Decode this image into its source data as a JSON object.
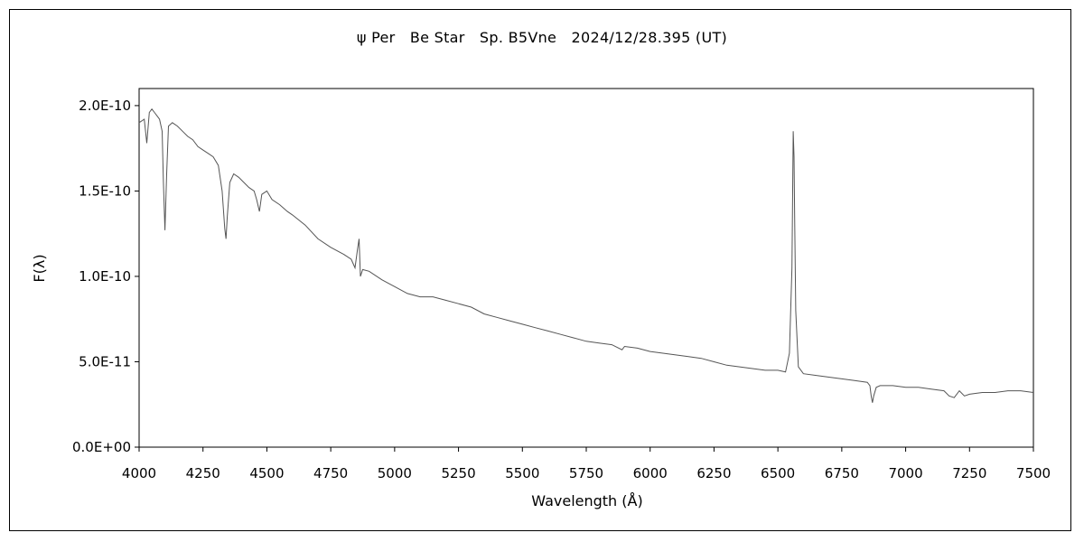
{
  "chart_data": {
    "type": "line",
    "title": "ψ Per　Be Star　Sp. B5Vne　2024/12/28.395 (UT)",
    "xlabel": "Wavelength (Å)",
    "ylabel": "F(λ)",
    "xlim": [
      4000,
      7500
    ],
    "ylim": [
      0,
      2.1e-10
    ],
    "x_ticks": [
      4000,
      4250,
      4500,
      4750,
      5000,
      5250,
      5500,
      5750,
      6000,
      6250,
      6500,
      6750,
      7000,
      7250,
      7500
    ],
    "x_tick_labels": [
      "4000",
      "4250",
      "4500",
      "4750",
      "5000",
      "5250",
      "5500",
      "5750",
      "6000",
      "6250",
      "6500",
      "6750",
      "7000",
      "7250",
      "7500"
    ],
    "y_ticks": [
      0,
      5e-11,
      1e-10,
      1.5e-10,
      2e-10
    ],
    "y_tick_labels": [
      "0.0E+00",
      "5.0E-11",
      "1.0E-10",
      "1.5E-10",
      "2.0E-10"
    ],
    "grid": false,
    "legend": false,
    "line_color": "#555555",
    "series": [
      {
        "x": [
          4000,
          4020,
          4030,
          4040,
          4050,
          4060,
          4070,
          4080,
          4090,
          4095,
          4101,
          4108,
          4115,
          4130,
          4150,
          4170,
          4190,
          4210,
          4230,
          4250,
          4270,
          4290,
          4310,
          4325,
          4335,
          4340,
          4345,
          4355,
          4370,
          4390,
          4410,
          4430,
          4450,
          4460,
          4471,
          4480,
          4500,
          4520,
          4550,
          4580,
          4600,
          4650,
          4700,
          4750,
          4800,
          4830,
          4845,
          4855,
          4861,
          4866,
          4875,
          4900,
          4950,
          5000,
          5050,
          5100,
          5150,
          5200,
          5250,
          5300,
          5350,
          5400,
          5450,
          5500,
          5550,
          5600,
          5650,
          5700,
          5750,
          5800,
          5850,
          5890,
          5900,
          5950,
          6000,
          6050,
          6100,
          6150,
          6200,
          6250,
          6300,
          6350,
          6400,
          6450,
          6500,
          6530,
          6545,
          6555,
          6560,
          6563,
          6566,
          6570,
          6580,
          6600,
          6650,
          6700,
          6750,
          6800,
          6850,
          6860,
          6865,
          6870,
          6875,
          6885,
          6900,
          6950,
          7000,
          7050,
          7100,
          7150,
          7170,
          7190,
          7210,
          7230,
          7250,
          7300,
          7350,
          7400,
          7450,
          7500
        ],
        "y": [
          1.9e-10,
          1.92e-10,
          1.78e-10,
          1.96e-10,
          1.98e-10,
          1.96e-10,
          1.94e-10,
          1.92e-10,
          1.85e-10,
          1.55e-10,
          1.27e-10,
          1.6e-10,
          1.88e-10,
          1.9e-10,
          1.88e-10,
          1.85e-10,
          1.82e-10,
          1.8e-10,
          1.76e-10,
          1.74e-10,
          1.72e-10,
          1.7e-10,
          1.65e-10,
          1.5e-10,
          1.28e-10,
          1.22e-10,
          1.35e-10,
          1.55e-10,
          1.6e-10,
          1.58e-10,
          1.55e-10,
          1.52e-10,
          1.5e-10,
          1.45e-10,
          1.38e-10,
          1.48e-10,
          1.5e-10,
          1.45e-10,
          1.42e-10,
          1.38e-10,
          1.36e-10,
          1.3e-10,
          1.22e-10,
          1.17e-10,
          1.13e-10,
          1.1e-10,
          1.05e-10,
          1.16e-10,
          1.22e-10,
          1e-10,
          1.04e-10,
          1.03e-10,
          9.8e-11,
          9.4e-11,
          9e-11,
          8.8e-11,
          8.8e-11,
          8.6e-11,
          8.4e-11,
          8.2e-11,
          7.8e-11,
          7.6e-11,
          7.4e-11,
          7.2e-11,
          7e-11,
          6.8e-11,
          6.6e-11,
          6.4e-11,
          6.2e-11,
          6.1e-11,
          6e-11,
          5.7e-11,
          5.9e-11,
          5.8e-11,
          5.6e-11,
          5.5e-11,
          5.4e-11,
          5.3e-11,
          5.2e-11,
          5e-11,
          4.8e-11,
          4.7e-11,
          4.6e-11,
          4.5e-11,
          4.5e-11,
          4.4e-11,
          5.5e-11,
          1.05e-10,
          1.85e-10,
          1.7e-10,
          1.3e-10,
          8e-11,
          4.7e-11,
          4.3e-11,
          4.2e-11,
          4.1e-11,
          4e-11,
          3.9e-11,
          3.8e-11,
          3.6e-11,
          3e-11,
          2.6e-11,
          3e-11,
          3.5e-11,
          3.6e-11,
          3.6e-11,
          3.5e-11,
          3.5e-11,
          3.4e-11,
          3.3e-11,
          3e-11,
          2.9e-11,
          3.3e-11,
          3e-11,
          3.1e-11,
          3.2e-11,
          3.2e-11,
          3.3e-11,
          3.3e-11,
          3.2e-11
        ]
      }
    ]
  }
}
